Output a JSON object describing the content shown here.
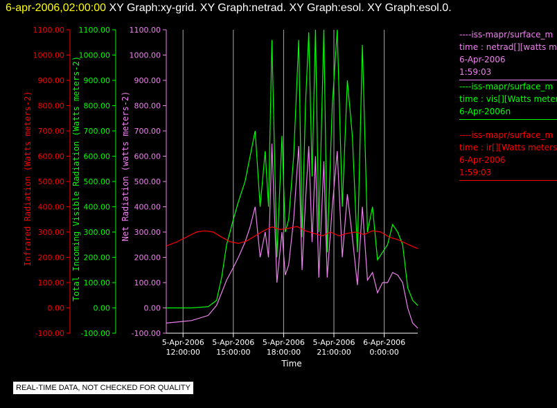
{
  "title": {
    "date": "6-apr-2006,02:00:00",
    "graphs": "XY Graph:xy-grid.  XY Graph:netrad.  XY Graph:esol.  XY Graph:esol.0."
  },
  "notice": "REAL-TIME DATA, NOT CHECKED FOR QUALITY",
  "legend": [
    {
      "lines": [
        "----iss-mapr/surface_m",
        "time : netrad[][watts m",
        "6-Apr-2006",
        "1:59:03"
      ],
      "color": "#ee82ee"
    },
    {
      "lines": [
        "----iss-mapr/surface_m",
        "time : vis[][Watts meter",
        "6-Apr-2006n"
      ],
      "color": "#00ff00"
    },
    {
      "lines": [
        "----iss-mapr/surface_m",
        "time : ir[][Watts meters",
        "6-Apr-2006",
        "1:59:03"
      ],
      "color": "#ff0000"
    }
  ],
  "chart_data": {
    "type": "line",
    "xlabel": "Time",
    "x_ticks": [
      {
        "value": 12.0,
        "date": "5-Apr-2006",
        "time": "12:00:00"
      },
      {
        "value": 15.0,
        "date": "5-Apr-2006",
        "time": "15:00:00"
      },
      {
        "value": 18.0,
        "date": "5-Apr-2006",
        "time": "18:00:00"
      },
      {
        "value": 21.0,
        "date": "5-Apr-2006",
        "time": "21:00:00"
      },
      {
        "value": 24.0,
        "date": "6-Apr-2006",
        "time": "0:00:00"
      }
    ],
    "xlim": [
      11.0,
      26.0
    ],
    "axes": [
      {
        "id": "ir",
        "label": "Infrared Radiation (Watts meters-2)",
        "color": "#ff0000",
        "ylim": [
          -100,
          1100
        ],
        "ticks": [
          "-100.00",
          "0.00",
          "100.00",
          "200.00",
          "300.00",
          "400.00",
          "500.00",
          "600.00",
          "700.00",
          "800.00",
          "900.00",
          "1000.00",
          "1100.00"
        ]
      },
      {
        "id": "vis",
        "label": "Total Incoming Visible Radiation (Watts meters-2)",
        "color": "#00ff00",
        "ylim": [
          -100,
          1100
        ],
        "ticks": [
          "-100.00",
          "0.00",
          "100.00",
          "200.00",
          "300.00",
          "400.00",
          "500.00",
          "600.00",
          "700.00",
          "800.00",
          "900.00",
          "1000.00",
          "1100.00"
        ]
      },
      {
        "id": "netrad",
        "label": "Net Radiation (watts meters-2)",
        "color": "#ee82ee",
        "ylim": [
          -100,
          1100
        ],
        "ticks": [
          "-100.00",
          "0.00",
          "100.00",
          "200.00",
          "300.00",
          "400.00",
          "500.00",
          "600.00",
          "700.00",
          "800.00",
          "900.00",
          "1000.00",
          "1100.00"
        ]
      }
    ],
    "grid": {
      "vertical": true,
      "horizontal": false
    },
    "series": [
      {
        "axis": "vis",
        "color": "#00ff00",
        "x": [
          11.0,
          12.5,
          13.5,
          14.0,
          14.3,
          14.6,
          15.0,
          15.3,
          15.7,
          16.0,
          16.3,
          16.6,
          16.9,
          17.1,
          17.3,
          17.6,
          17.9,
          18.1,
          18.3,
          18.6,
          18.9,
          19.1,
          19.3,
          19.5,
          19.7,
          19.9,
          20.1,
          20.4,
          20.6,
          20.9,
          21.2,
          21.5,
          21.8,
          22.1,
          22.4,
          22.7,
          23.0,
          23.3,
          23.6,
          23.9,
          24.2,
          24.5,
          24.8,
          25.1,
          25.4,
          25.7,
          26.0
        ],
        "y": [
          0,
          0,
          5,
          30,
          120,
          250,
          350,
          420,
          500,
          600,
          700,
          400,
          620,
          400,
          1060,
          200,
          680,
          300,
          350,
          600,
          1060,
          280,
          800,
          1090,
          520,
          1100,
          300,
          1100,
          220,
          800,
          1100,
          400,
          900,
          680,
          220,
          1040,
          300,
          400,
          190,
          220,
          250,
          330,
          300,
          250,
          80,
          30,
          10
        ]
      },
      {
        "axis": "netrad",
        "color": "#ee82ee",
        "x": [
          11.0,
          12.5,
          13.5,
          14.0,
          14.3,
          14.6,
          15.0,
          15.3,
          15.7,
          16.0,
          16.3,
          16.6,
          16.9,
          17.1,
          17.3,
          17.6,
          17.9,
          18.1,
          18.3,
          18.6,
          18.9,
          19.1,
          19.3,
          19.5,
          19.7,
          19.9,
          20.1,
          20.4,
          20.6,
          20.9,
          21.2,
          21.5,
          21.8,
          22.1,
          22.4,
          22.7,
          23.0,
          23.3,
          23.6,
          23.9,
          24.2,
          24.5,
          24.8,
          25.1,
          25.4,
          25.7,
          26.0
        ],
        "y": [
          -60,
          -50,
          -30,
          10,
          60,
          110,
          160,
          200,
          260,
          320,
          400,
          200,
          300,
          200,
          650,
          100,
          300,
          130,
          170,
          350,
          640,
          150,
          420,
          640,
          260,
          600,
          120,
          580,
          120,
          400,
          620,
          200,
          450,
          280,
          90,
          400,
          110,
          140,
          60,
          100,
          100,
          140,
          130,
          100,
          0,
          -60,
          -80
        ]
      },
      {
        "axis": "ir",
        "color": "#ff0000",
        "x": [
          11.0,
          11.6,
          12.2,
          12.8,
          13.3,
          13.8,
          14.3,
          14.8,
          15.3,
          15.8,
          16.3,
          16.8,
          17.3,
          17.8,
          18.3,
          18.8,
          19.3,
          19.8,
          20.3,
          20.8,
          21.3,
          21.8,
          22.3,
          22.8,
          23.3,
          23.8,
          24.3,
          24.8,
          25.3,
          25.8,
          26.0
        ],
        "y": [
          245,
          260,
          280,
          300,
          305,
          300,
          280,
          262,
          255,
          265,
          285,
          305,
          320,
          310,
          315,
          322,
          305,
          295,
          285,
          300,
          285,
          295,
          300,
          290,
          305,
          300,
          280,
          270,
          255,
          240,
          235
        ]
      }
    ]
  }
}
